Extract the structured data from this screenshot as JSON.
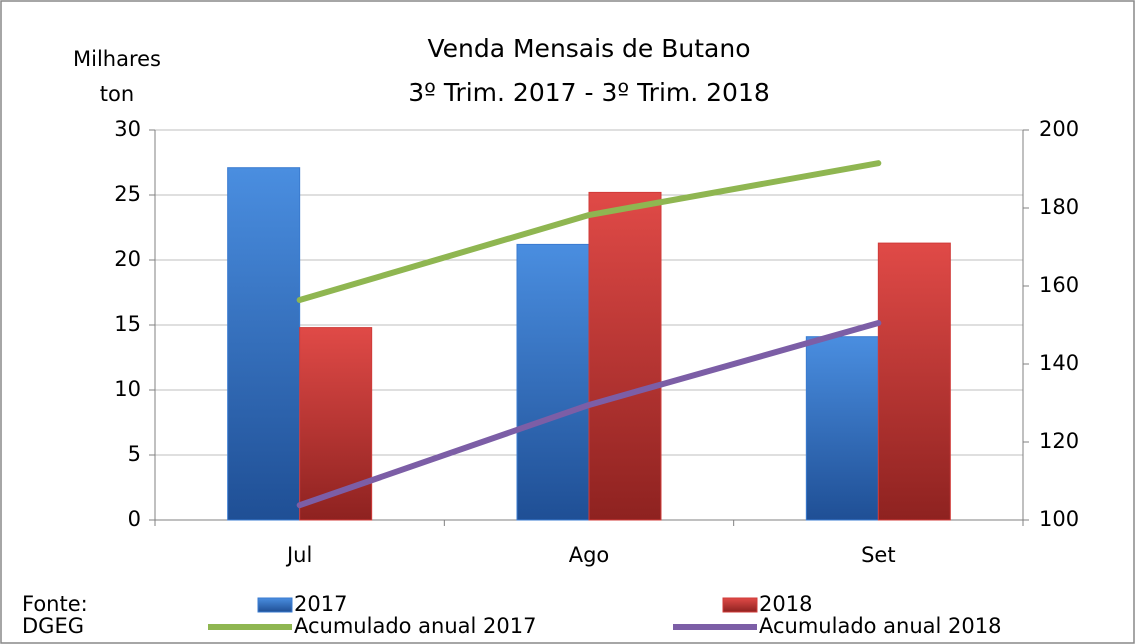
{
  "chart_data": {
    "type": "bar",
    "title": "Venda Mensais de Butano",
    "subtitle": "3º Trim. 2017 - 3º Trim. 2018",
    "ylabel": [
      "Milhares",
      "ton"
    ],
    "source": [
      "Fonte:",
      "DGEG"
    ],
    "categories": [
      "Jul",
      "Ago",
      "Set"
    ],
    "series": [
      {
        "name": "2017",
        "type": "bar",
        "color": "#3a7bd0",
        "values": [
          27.1,
          21.2,
          14.1
        ]
      },
      {
        "name": "2018",
        "type": "bar",
        "color": "#d03b39",
        "values": [
          14.8,
          25.2,
          21.3
        ]
      },
      {
        "name": "Acumulado anual 2017",
        "type": "line",
        "axis": "y2",
        "color": "#8fb651",
        "values": [
          156.4,
          178.2,
          191.5
        ]
      },
      {
        "name": "Acumulado anual 2018",
        "type": "line",
        "axis": "y2",
        "color": "#7c5ea6",
        "values": [
          103.8,
          129.5,
          150.5
        ]
      }
    ],
    "ylim": [
      0,
      30
    ],
    "yticks": [
      0,
      5,
      10,
      15,
      20,
      25,
      30
    ],
    "y2lim": [
      100,
      200
    ],
    "y2ticks": [
      100,
      120,
      140,
      160,
      180,
      200
    ],
    "grid": true
  }
}
